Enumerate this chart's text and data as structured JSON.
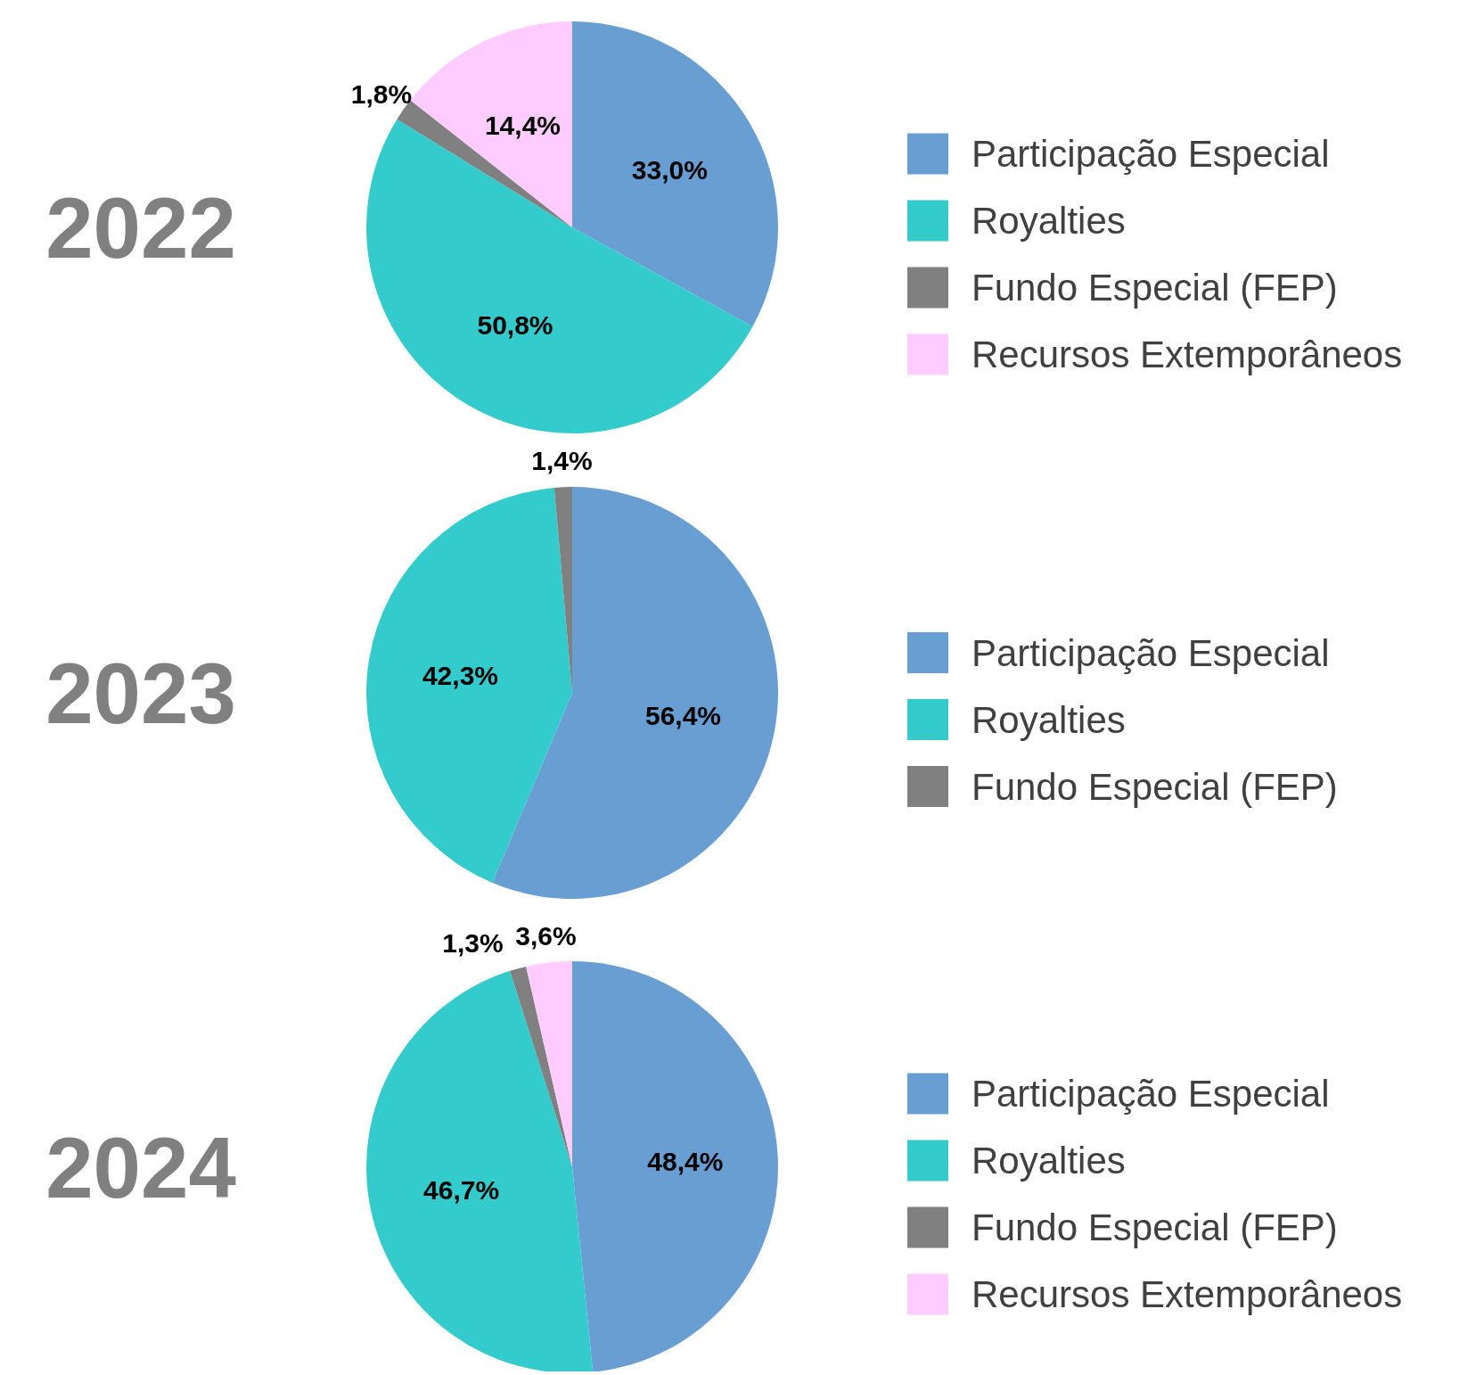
{
  "chart_data": [
    {
      "type": "pie",
      "title": "2022",
      "categories": [
        "Participação Especial",
        "Royalties",
        "Fundo Especial (FEP)",
        "Recursos Extemporâneos"
      ],
      "values": [
        33.0,
        50.8,
        1.8,
        14.4
      ],
      "colors": [
        "#689ed2",
        "#33cbcc",
        "#808080",
        "#ffccff"
      ],
      "value_labels": [
        "33,0%",
        "50,8%",
        "1,8%",
        "14,4%"
      ],
      "legend": "right"
    },
    {
      "type": "pie",
      "title": "2023",
      "categories": [
        "Participação Especial",
        "Royalties",
        "Fundo Especial (FEP)"
      ],
      "values": [
        56.4,
        42.3,
        1.4
      ],
      "colors": [
        "#689ed2",
        "#33cbcc",
        "#808080"
      ],
      "value_labels": [
        "56,4%",
        "42,3%",
        "1,4%"
      ],
      "legend": "right"
    },
    {
      "type": "pie",
      "title": "2024",
      "categories": [
        "Participação Especial",
        "Royalties",
        "Fundo Especial (FEP)",
        "Recursos Extemporâneos"
      ],
      "values": [
        48.4,
        46.7,
        1.3,
        3.6
      ],
      "colors": [
        "#689ed2",
        "#33cbcc",
        "#808080",
        "#ffccff"
      ],
      "value_labels": [
        "48,4%",
        "46,7%",
        "1,3%",
        "3,6%"
      ],
      "legend": "right"
    }
  ]
}
